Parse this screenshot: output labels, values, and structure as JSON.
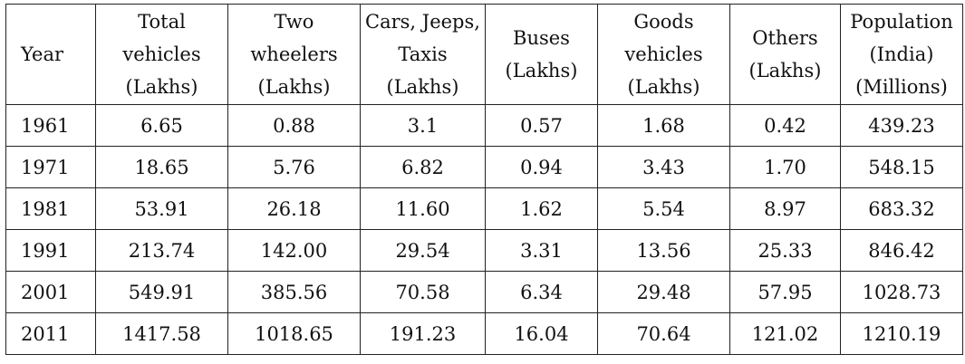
{
  "table": {
    "headers": [
      [
        "Year"
      ],
      [
        "Total",
        "vehicles",
        "(Lakhs)"
      ],
      [
        "Two",
        "wheelers",
        "(Lakhs)"
      ],
      [
        "Cars, Jeeps,",
        "Taxis",
        "(Lakhs)"
      ],
      [
        "Buses",
        "(Lakhs)"
      ],
      [
        "Goods",
        "vehicles",
        "(Lakhs)"
      ],
      [
        "Others",
        "(Lakhs)"
      ],
      [
        "Population",
        "(India)",
        "(Millions)"
      ]
    ],
    "rows": [
      [
        "1961",
        "6.65",
        "0.88",
        "3.1",
        "0.57",
        "1.68",
        "0.42",
        "439.23"
      ],
      [
        "1971",
        "18.65",
        "5.76",
        "6.82",
        "0.94",
        "3.43",
        "1.70",
        "548.15"
      ],
      [
        "1981",
        "53.91",
        "26.18",
        "11.60",
        "1.62",
        "5.54",
        "8.97",
        "683.32"
      ],
      [
        "1991",
        "213.74",
        "142.00",
        "29.54",
        "3.31",
        "13.56",
        "25.33",
        "846.42"
      ],
      [
        "2001",
        "549.91",
        "385.56",
        "70.58",
        "6.34",
        "29.48",
        "57.95",
        "1028.73"
      ],
      [
        "2011",
        "1417.58",
        "1018.65",
        "191.23",
        "16.04",
        "70.64",
        "121.02",
        "1210.19"
      ]
    ]
  }
}
